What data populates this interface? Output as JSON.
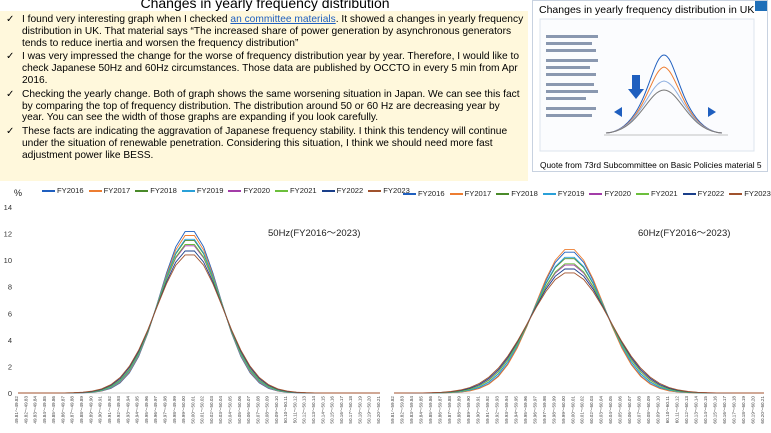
{
  "slide": {
    "title": "Changes in yearly frequency distribution",
    "bullets": [
      {
        "before": "I found very interesting graph when I checked ",
        "link": "an committee materials",
        "after": ". It showed a changes in yearly frequency distribution in UK. That material says “The increased share of power generation by asynchronous generators tends to reduce inertia and worsen the frequency distribution”"
      },
      {
        "before": " I was very impressed the change for the worse of frequency distribution year by year. Therefore, I would like to check Japanese 50Hz and 60Hz circumstances. Those data are published by OCCTO in every 5 min from Apr 2016.",
        "link": "",
        "after": ""
      },
      {
        "before": "Checking the yearly change. Both of graph shows the same worsening situation in Japan. We can see this fact by comparing the top of frequency distribution. The distribution around 50 or 60 Hz are decreasing year by year. You can see the width of those graphs are expanding if you look carefully.",
        "link": "",
        "after": ""
      },
      {
        "before": "These facts are indicating the aggravation of Japanese frequency stability. I think this tendency will continue under the situation of renewable penetration. Considering this situation, I think we should need more fast adjustment power like BESS.",
        "link": "",
        "after": ""
      }
    ],
    "inset_title": "Changes in yearly frequency distribution in UK",
    "inset_caption": "Quote from 73rd Subcommittee on Basic Policies material 5"
  },
  "colors": {
    "FY2016": "#1f5fbf",
    "FY2017": "#ed7d31",
    "FY2018": "#4a8a2a",
    "FY2019": "#2aa0d8",
    "FY2020": "#a33ca8",
    "FY2021": "#6cbf3c",
    "FY2022": "#1a3f8a",
    "FY2023": "#a0522d"
  },
  "chart_data": [
    {
      "type": "line",
      "ylabel": "%",
      "annotation": "50Hz(FY2016～2023)",
      "ylim": [
        0,
        14
      ],
      "yticks": [
        0,
        2,
        4,
        6,
        8,
        10,
        12,
        14
      ],
      "center_hz": 50.0,
      "x_start": 49.81,
      "x_end": 50.2,
      "x_step": 0.01,
      "series": [
        {
          "name": "FY2016",
          "peak": 12.3,
          "sigma": 0.0318
        },
        {
          "name": "FY2017",
          "peak": 12.0,
          "sigma": 0.0323
        },
        {
          "name": "FY2018",
          "peak": 11.6,
          "sigma": 0.0331
        },
        {
          "name": "FY2019",
          "peak": 11.7,
          "sigma": 0.0329
        },
        {
          "name": "FY2020",
          "peak": 11.2,
          "sigma": 0.034
        },
        {
          "name": "FY2021",
          "peak": 11.3,
          "sigma": 0.0338
        },
        {
          "name": "FY2022",
          "peak": 10.8,
          "sigma": 0.035
        },
        {
          "name": "FY2023",
          "peak": 10.5,
          "sigma": 0.0358
        }
      ]
    },
    {
      "type": "line",
      "annotation": "60Hz(FY2016～2023)",
      "ylim": [
        0,
        14
      ],
      "center_hz": 60.0,
      "x_start": 59.81,
      "x_end": 60.2,
      "x_step": 0.01,
      "series": [
        {
          "name": "FY2016",
          "peak": 10.7,
          "sigma": 0.0365
        },
        {
          "name": "FY2017",
          "peak": 10.9,
          "sigma": 0.036
        },
        {
          "name": "FY2018",
          "peak": 10.2,
          "sigma": 0.038
        },
        {
          "name": "FY2019",
          "peak": 10.3,
          "sigma": 0.0378
        },
        {
          "name": "FY2020",
          "peak": 9.7,
          "sigma": 0.0398
        },
        {
          "name": "FY2021",
          "peak": 9.8,
          "sigma": 0.0394
        },
        {
          "name": "FY2022",
          "peak": 9.4,
          "sigma": 0.041
        },
        {
          "name": "FY2023",
          "peak": 9.1,
          "sigma": 0.0422
        }
      ]
    }
  ]
}
